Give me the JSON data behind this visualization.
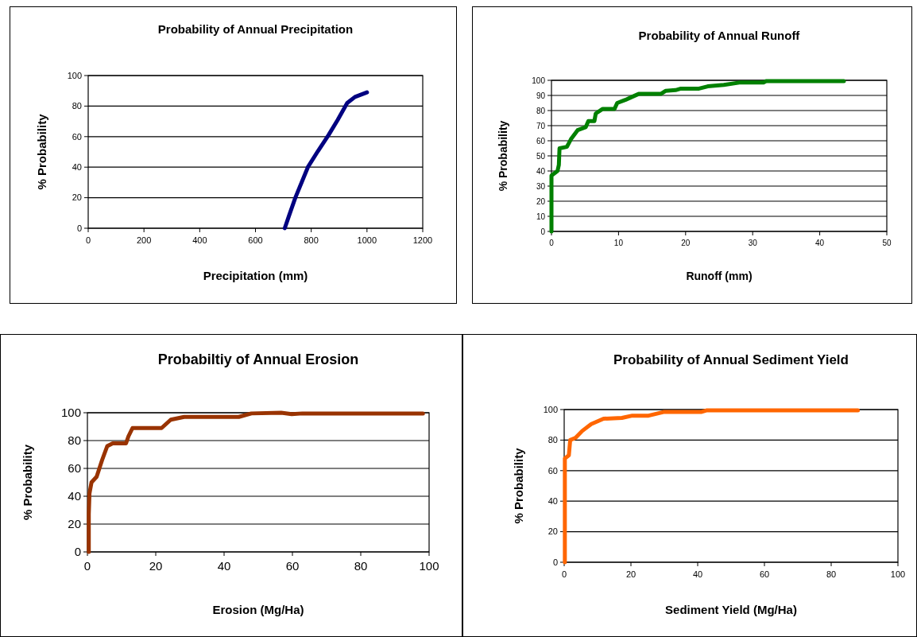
{
  "chart_data": [
    {
      "type": "line",
      "title": "Probability of Annual Precipitation",
      "xlabel": "Precipitation (mm)",
      "ylabel": "% Probability",
      "xlim": [
        0,
        1200
      ],
      "ylim": [
        0,
        100
      ],
      "xticks": [
        0,
        200,
        400,
        600,
        800,
        1000,
        1200
      ],
      "yticks": [
        0,
        20,
        40,
        60,
        80,
        100
      ],
      "grid": "y",
      "series": [
        {
          "color": "#000080",
          "x": [
            705,
            720,
            743,
            788,
            824,
            862,
            895,
            929,
            957,
            1000
          ],
          "values": [
            0,
            8,
            20,
            40,
            50.5,
            61,
            71,
            82,
            86,
            89
          ]
        }
      ]
    },
    {
      "type": "line",
      "title": "Probability of Annual Runoff",
      "xlabel": "Runoff (mm)",
      "ylabel": "% Probability",
      "xlim": [
        0,
        50
      ],
      "ylim": [
        0,
        100
      ],
      "xticks": [
        0,
        10,
        20,
        30,
        40,
        50
      ],
      "yticks": [
        0,
        10,
        20,
        30,
        40,
        50,
        60,
        70,
        80,
        90,
        100
      ],
      "grid": "y",
      "series": [
        {
          "color": "#008000",
          "x": [
            0,
            0,
            0.9,
            1.1,
            1.2,
            2.3,
            2.9,
            3.9,
            5.1,
            5.5,
            6.4,
            6.6,
            7.6,
            9.4,
            9.8,
            11,
            12,
            13,
            16.3,
            17,
            18.5,
            19.3,
            22,
            23.3,
            25.7,
            28,
            31.6,
            32,
            41,
            43.6
          ],
          "values": [
            0,
            37,
            40,
            44,
            55,
            56,
            61,
            67,
            69,
            73,
            73,
            78,
            81,
            81,
            85,
            87,
            89,
            91,
            91,
            93,
            93.5,
            94.5,
            94.5,
            96,
            97,
            98.5,
            98.5,
            99.5,
            99.5,
            99.5
          ]
        }
      ]
    },
    {
      "type": "line",
      "title": "Probabiltiy of Annual Erosion",
      "xlabel": "Erosion (Mg/Ha)",
      "ylabel": "% Probability",
      "xlim": [
        0,
        100
      ],
      "ylim": [
        0,
        100
      ],
      "xticks": [
        0,
        20,
        40,
        60,
        80,
        100
      ],
      "yticks": [
        0,
        20,
        40,
        60,
        80,
        100
      ],
      "grid": "y",
      "series": [
        {
          "color": "#993300",
          "x": [
            0.4,
            0.4,
            0.6,
            1.2,
            2.7,
            3.5,
            4.3,
            5.8,
            7.4,
            11.3,
            12,
            13.2,
            21.7,
            24.4,
            28.3,
            44.3,
            48,
            56.7,
            59.8,
            62.9,
            98.2
          ],
          "values": [
            0,
            27,
            42,
            50,
            54,
            60,
            66,
            76,
            78,
            78,
            83,
            89,
            89,
            95,
            97,
            97,
            99.5,
            100,
            99,
            99.5,
            99.5
          ]
        }
      ]
    },
    {
      "type": "line",
      "title": "Probability of Annual Sediment Yield",
      "xlabel": "Sediment Yield (Mg/Ha)",
      "ylabel": "% Probability",
      "xlim": [
        0,
        100
      ],
      "ylim": [
        0,
        100
      ],
      "xticks": [
        0,
        20,
        40,
        60,
        80,
        100
      ],
      "yticks": [
        0,
        20,
        40,
        60,
        80,
        100
      ],
      "grid": "y",
      "series": [
        {
          "color": "#ff6600",
          "x": [
            0.2,
            0.2,
            0.2,
            1.4,
            1.8,
            3.4,
            5.4,
            8.1,
            11.8,
            17.3,
            20.4,
            25.3,
            30,
            41.2,
            42.8,
            57.9,
            88
          ],
          "values": [
            0,
            58,
            68,
            70,
            80,
            81.5,
            86,
            90.5,
            94,
            94.5,
            96,
            96,
            98.5,
            98.5,
            99.5,
            99.5,
            99.5
          ]
        }
      ]
    }
  ]
}
